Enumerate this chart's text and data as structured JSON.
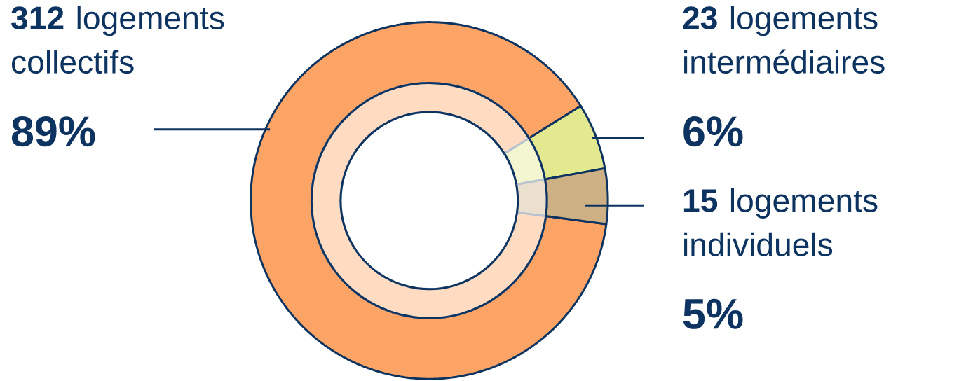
{
  "chart_data": {
    "type": "donut",
    "categories": [
      "**312** logements collectifs",
      "**23** logements intermédiaires",
      "**15** logements individuels"
    ],
    "values": [
      89,
      6,
      5
    ],
    "value_labels": [
      "89%",
      "6%",
      "5%"
    ],
    "colors": [
      "#fca465",
      "#e3e98f",
      "#cdb084"
    ]
  }
}
